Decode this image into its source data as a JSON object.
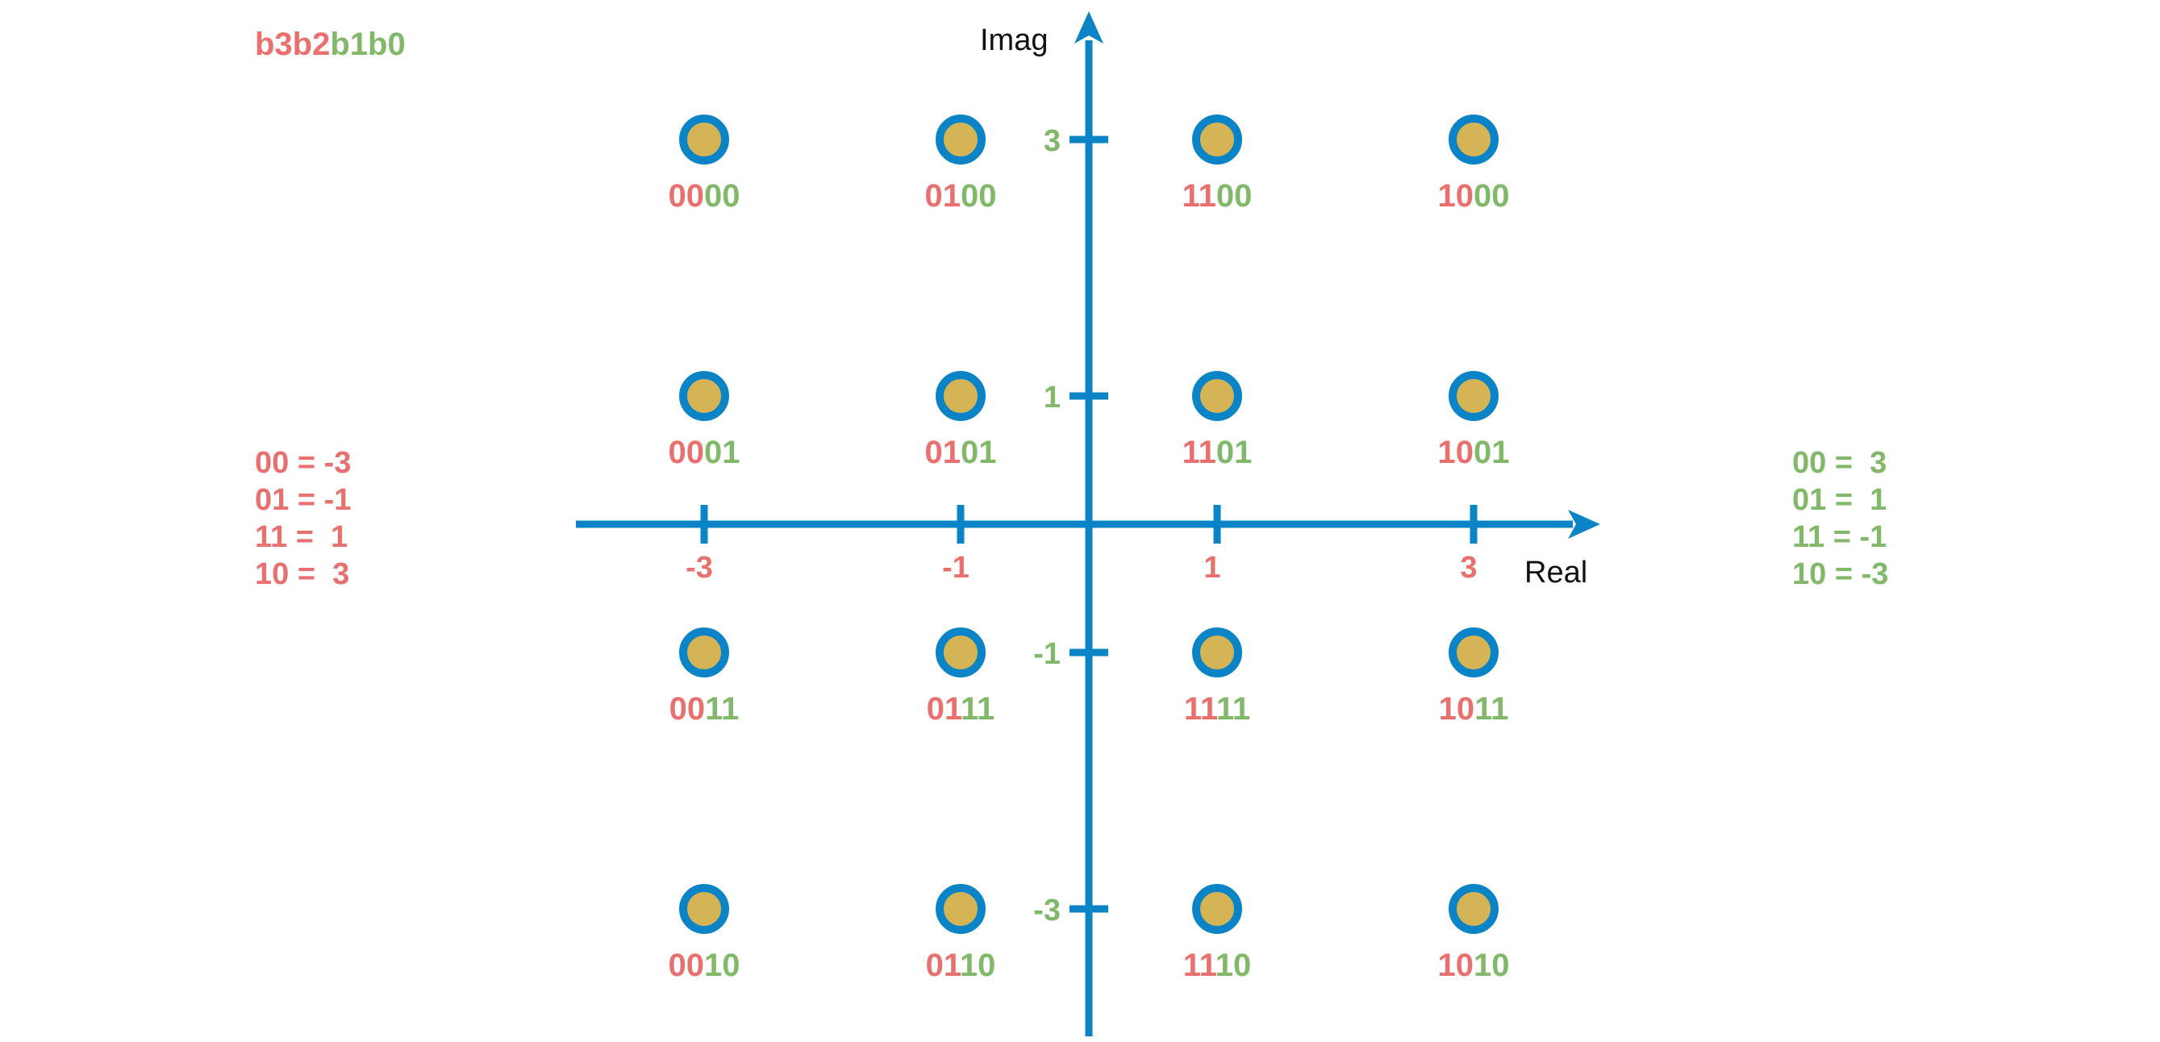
{
  "colors": {
    "axis": "#0a84c6",
    "red_bits": "#e8706e",
    "green_bits": "#82b86a",
    "point_fill": "#d4b454",
    "point_ring": "#0a84c6",
    "axis_label": "#111111"
  },
  "header": {
    "bits_red": "b3b2",
    "bits_green": "b1b0"
  },
  "axes": {
    "x_label": "Real",
    "y_label": "Imag",
    "x_range": [
      -4.0,
      4.0
    ],
    "y_range": [
      -4.0,
      4.0
    ]
  },
  "legend_left": {
    "lines": [
      "00 = -3",
      "01 = -1",
      "11 =  1",
      "10 =  3"
    ]
  },
  "legend_right": {
    "lines": [
      "00 =  3",
      "01 =  1",
      "11 = -1",
      "10 = -3"
    ]
  },
  "chart_data": {
    "type": "scatter",
    "x_ticks": [
      {
        "value": -3,
        "label": "-3"
      },
      {
        "value": -1,
        "label": "-1"
      },
      {
        "value": 1,
        "label": "1"
      },
      {
        "value": 3,
        "label": "3"
      }
    ],
    "y_ticks": [
      {
        "value": 3,
        "label": "3"
      },
      {
        "value": 1,
        "label": "1"
      },
      {
        "value": -1,
        "label": "-1"
      },
      {
        "value": -3,
        "label": "-3"
      }
    ],
    "points": [
      {
        "x": -3,
        "y": 3,
        "high": "00",
        "low": "00"
      },
      {
        "x": -1,
        "y": 3,
        "high": "01",
        "low": "00"
      },
      {
        "x": 1,
        "y": 3,
        "high": "11",
        "low": "00"
      },
      {
        "x": 3,
        "y": 3,
        "high": "10",
        "low": "00"
      },
      {
        "x": -3,
        "y": 1,
        "high": "00",
        "low": "01"
      },
      {
        "x": -1,
        "y": 1,
        "high": "01",
        "low": "01"
      },
      {
        "x": 1,
        "y": 1,
        "high": "11",
        "low": "01"
      },
      {
        "x": 3,
        "y": 1,
        "high": "10",
        "low": "01"
      },
      {
        "x": -3,
        "y": -1,
        "high": "00",
        "low": "11"
      },
      {
        "x": -1,
        "y": -1,
        "high": "01",
        "low": "11"
      },
      {
        "x": 1,
        "y": -1,
        "high": "11",
        "low": "11"
      },
      {
        "x": 3,
        "y": -1,
        "high": "10",
        "low": "11"
      },
      {
        "x": -3,
        "y": -3,
        "high": "00",
        "low": "10"
      },
      {
        "x": -1,
        "y": -3,
        "high": "01",
        "low": "10"
      },
      {
        "x": 1,
        "y": -3,
        "high": "11",
        "low": "10"
      },
      {
        "x": 3,
        "y": -3,
        "high": "10",
        "low": "10"
      }
    ]
  }
}
